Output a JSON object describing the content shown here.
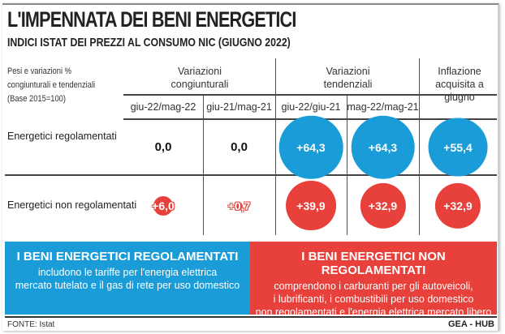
{
  "title": "L'IMPENNATA DEI BENI ENERGETICI",
  "subtitle": "INDICI ISTAT DEI PREZZI AL CONSUMO NIC (GIUGNO 2022)",
  "note": [
    "Pesi e variazioni %",
    "congiunturali e tendenziali",
    "(Base 2015=100)"
  ],
  "groups": [
    "Variazioni\ncongiunturali",
    "Variazioni\ntendenziali",
    "Inflazione\nacquisita a giugno"
  ],
  "columns": [
    "giu-22/mag-22",
    "giu-21/mag-21",
    "giu-22/giu-21",
    "mag-22/mag-21",
    ""
  ],
  "colors": {
    "regolamentati": "#1a9cd8",
    "non_regolamentati": "#e8403a"
  },
  "chart_data": {
    "type": "table",
    "encoding": "bubble size proportional to value",
    "rows": [
      {
        "label": "Energetici regolamentati",
        "color": "#1a9cd8",
        "values": [
          0.0,
          0.0,
          64.3,
          64.3,
          55.4
        ],
        "labels": [
          "0,0",
          "0,0",
          "+64,3",
          "+64,3",
          "+55,4"
        ]
      },
      {
        "label": "Energetici non regolamentati",
        "color": "#e8403a",
        "values": [
          6.0,
          0.7,
          39.9,
          32.9,
          32.9
        ],
        "labels": [
          "+6,0",
          "+0,7",
          "+39,9",
          "+32,9",
          "+32,9"
        ]
      }
    ]
  },
  "boxes": [
    {
      "title": "I BENI ENERGETICI REGOLAMENTATI",
      "lines": [
        "includono le tariffe per l'energia elettrica",
        "mercato tutelato e il gas di rete per uso domestico"
      ]
    },
    {
      "title": "I BENI ENERGETICI NON REGOLAMENTATI",
      "lines": [
        "comprendono i carburanti per gli autoveicoli,",
        "i lubrificanti, i combustibili per uso domestico",
        "non regolamentati e l'energia elettrica mercato libero"
      ]
    }
  ],
  "footer": {
    "source": "FONTE: Istat",
    "brand": "GEA - HUB"
  }
}
